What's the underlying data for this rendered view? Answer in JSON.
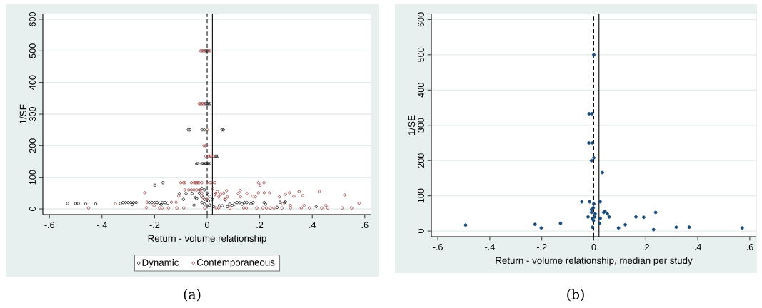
{
  "chart_data": [
    {
      "type": "scatter",
      "xlabel": "Return - volume relationship",
      "ylabel": "1/SE",
      "xlim": [
        -0.625,
        0.625
      ],
      "ylim": [
        -18,
        618
      ],
      "xticks": [
        {
          "value": -0.6,
          "label": "-.6"
        },
        {
          "value": -0.4,
          "label": "-.4"
        },
        {
          "value": -0.2,
          "label": "-.2"
        },
        {
          "value": 0,
          "label": "0"
        },
        {
          "value": 0.2,
          "label": ".2"
        },
        {
          "value": 0.4,
          "label": ".4"
        },
        {
          "value": 0.6,
          "label": ".6"
        }
      ],
      "yticks": [
        0,
        100,
        200,
        300,
        400,
        500,
        600
      ],
      "grid": "y",
      "legend": "bottom",
      "marker": "circle",
      "ref_lines": [
        {
          "axis": "x",
          "value": 0,
          "color": "#000000",
          "line_style": "dashed"
        },
        {
          "axis": "x",
          "value": 0.02,
          "color": "#000000",
          "line_style": "solid"
        }
      ],
      "annotations": [
        "(a)"
      ],
      "series": [
        {
          "name": "Dynamic",
          "color": "#000000",
          "x": [
            -0.531,
            -0.5,
            -0.49,
            -0.462,
            -0.424,
            -0.33,
            -0.32,
            -0.31,
            -0.3,
            -0.29,
            -0.285,
            -0.28,
            -0.27,
            -0.22,
            -0.21,
            -0.2,
            -0.19,
            -0.18,
            -0.175,
            -0.17,
            -0.16,
            -0.15,
            -0.199,
            -0.168,
            -0.05,
            -0.09,
            -0.106,
            -0.08,
            -0.057,
            -0.044,
            -0.04,
            -0.02,
            -0.01,
            0,
            -0.02,
            -0.01,
            -0.02,
            -0.01,
            0,
            0.01,
            0.02,
            -0.03,
            0.005,
            0.01,
            -0.072,
            -0.066,
            -0.02,
            -0.011,
            0.056,
            0.062,
            -0.005,
            0,
            0.005,
            0.01,
            -0.005,
            0,
            0.03,
            0.035,
            0.04,
            -0.04,
            -0.035,
            -0.02,
            -0.015,
            -0.01,
            -0.005,
            0,
            0.005,
            0.01,
            0.025,
            0.047,
            0.058,
            0.069,
            0.077,
            0.086,
            0.095,
            0.105,
            0.114,
            0.123,
            0.133,
            0.142,
            0.151,
            0.167,
            0.175,
            0.217,
            0.222,
            0.266,
            0.277,
            0.294,
            0.298,
            0.415
          ],
          "values": [
            17,
            17,
            17,
            16,
            16,
            17,
            20,
            20,
            20,
            20,
            14,
            20,
            20,
            20,
            20,
            20,
            20,
            18,
            14,
            20,
            20,
            18,
            75,
            83,
            12,
            30,
            49,
            49,
            49,
            36,
            33,
            65,
            60,
            50,
            40,
            30,
            20,
            15,
            10,
            40,
            30,
            50,
            25,
            12,
            250,
            250,
            250,
            250,
            250,
            250,
            333,
            333,
            333,
            333,
            500,
            500,
            167,
            167,
            167,
            143,
            143,
            143,
            143,
            143,
            143,
            143,
            143,
            143,
            7,
            10,
            10,
            29,
            7,
            15,
            11,
            15,
            20,
            20,
            15,
            20,
            20,
            16,
            20,
            20,
            15,
            5,
            21,
            20,
            22,
            7
          ]
        },
        {
          "name": "Contemporaneous",
          "color": "#943434",
          "x": [
            -0.025,
            -0.02,
            -0.015,
            -0.01,
            0.005,
            0.01,
            -0.03,
            -0.025,
            -0.02,
            -0.015,
            -0.01,
            0,
            -0.012,
            -0.005,
            -0.005,
            0.005,
            0.01,
            0.015,
            0.025,
            -0.1,
            -0.09,
            -0.085,
            -0.06,
            -0.05,
            -0.045,
            -0.04,
            -0.035,
            -0.03,
            -0.02,
            0,
            0.01,
            0.02,
            0.03,
            -0.085,
            -0.07,
            -0.06,
            -0.05,
            -0.04,
            -0.03,
            -0.025,
            -0.238,
            -0.229,
            -0.231,
            -0.349,
            -0.451,
            -0.202,
            -0.181,
            -0.171,
            -0.147,
            -0.136,
            -0.118,
            -0.115,
            -0.089,
            -0.108,
            -0.009,
            -0.016,
            0.021,
            0.033,
            0.039,
            0.044,
            0.035,
            0.044,
            0.05,
            0.063,
            0.067,
            0.074,
            0.077,
            0.087,
            0.118,
            0.126,
            0.127,
            0.139,
            0.151,
            0.149,
            0.173,
            0.184,
            0.189,
            0.195,
            0.195,
            0.202,
            0.216,
            0.217,
            0.212,
            0.226,
            0.237,
            0.24,
            0.254,
            0.275,
            0.285,
            0.287,
            0.298,
            0.313,
            0.317,
            0.317,
            0.33,
            0.35,
            0.358,
            0.364,
            0.369,
            0.389,
            0.427,
            0.436,
            0.452,
            0.459,
            0.514,
            0.523,
            0.55,
            0.578,
            -0.02,
            0.0,
            0.03,
            0.05
          ],
          "values": [
            500,
            500,
            500,
            500,
            500,
            500,
            333,
            333,
            333,
            333,
            333,
            250,
            200,
            200,
            167,
            167,
            167,
            167,
            167,
            83,
            83,
            83,
            83,
            83,
            83,
            83,
            83,
            83,
            83,
            83,
            83,
            83,
            83,
            60,
            60,
            60,
            60,
            60,
            60,
            60,
            51,
            21,
            4,
            16,
            3,
            10,
            3,
            3,
            3,
            21,
            21,
            3,
            3,
            40,
            3,
            36,
            65,
            50,
            55,
            38,
            3,
            3,
            46,
            50,
            30,
            58,
            38,
            3,
            49,
            58,
            38,
            3,
            49,
            3,
            40,
            38,
            3,
            83,
            51,
            75,
            83,
            51,
            3,
            3,
            51,
            3,
            3,
            38,
            3,
            16,
            46,
            51,
            11,
            3,
            40,
            55,
            3,
            42,
            11,
            3,
            55,
            3,
            11,
            3,
            3,
            44,
            3,
            18,
            50,
            30,
            45,
            48
          ]
        }
      ]
    },
    {
      "type": "scatter",
      "xlabel": "Return - volume relationship, median per study",
      "ylabel": "1/SE",
      "xlim": [
        -0.625,
        0.625
      ],
      "ylim": [
        -16,
        617
      ],
      "xticks": [
        {
          "value": -0.6,
          "label": "-.6"
        },
        {
          "value": -0.4,
          "label": "-.4"
        },
        {
          "value": -0.2,
          "label": "-.2"
        },
        {
          "value": 0,
          "label": "0"
        },
        {
          "value": 0.2,
          "label": ".2"
        },
        {
          "value": 0.4,
          "label": ".4"
        },
        {
          "value": 0.6,
          "label": ".6"
        }
      ],
      "yticks": [
        0,
        100,
        200,
        300,
        400,
        500,
        600
      ],
      "grid": "y",
      "marker": "circle",
      "ref_lines": [
        {
          "axis": "x",
          "value": 0,
          "color": "#000000",
          "line_style": "dashed"
        },
        {
          "axis": "x",
          "value": 0.02,
          "color": "#000000",
          "line_style": "solid"
        }
      ],
      "annotations": [
        "(b)"
      ],
      "series": [
        {
          "color": "#1a4a7a",
          "x": [
            -0.493,
            -0.226,
            -0.202,
            -0.128,
            -0.046,
            -0.016,
            0.025,
            0,
            -0.002,
            -0.009,
            -0.009,
            -0.022,
            -0.006,
            -0.001,
            0.003,
            0.005,
            -0.005,
            0.022,
            0.025,
            0.038,
            0.043,
            0.052,
            0.059,
            0.095,
            0.121,
            0.162,
            0.192,
            0.238,
            0.23,
            0.317,
            0.367,
            0.571,
            0,
            -0.018,
            -0.007,
            -0.019,
            -0.005,
            0,
            -0.009,
            0.033
          ],
          "values": [
            17,
            19,
            9,
            22,
            83,
            83,
            83,
            77,
            66,
            61,
            53,
            40,
            36,
            30,
            40,
            49,
            11,
            22,
            36,
            53,
            56,
            49,
            40,
            9,
            18,
            40,
            39,
            53,
            4,
            11,
            11,
            9,
            500,
            333,
            333,
            250,
            250,
            208,
            200,
            166
          ]
        }
      ]
    }
  ]
}
